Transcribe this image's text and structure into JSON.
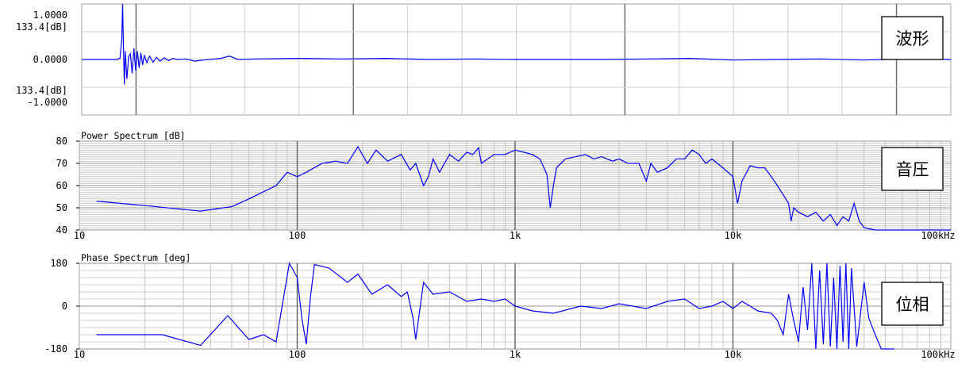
{
  "chart_data": [
    {
      "type": "line",
      "id": "waveform",
      "panel_label": "波形",
      "y_tick_labels": {
        "top": [
          "1.0000",
          "133.4[dB]"
        ],
        "mid": "0.0000",
        "bottom": [
          "133.4[dB]",
          "-1.0000"
        ]
      },
      "ylim": [
        -1,
        1
      ],
      "grid": true,
      "line_color": "#0000ff",
      "series": [
        {
          "points": [
            [
              0.0,
              0.0
            ],
            [
              0.04,
              0.0
            ],
            [
              0.044,
              0.02
            ],
            [
              0.046,
              0.35
            ],
            [
              0.047,
              1.0
            ],
            [
              0.048,
              0.2
            ],
            [
              0.049,
              -0.45
            ],
            [
              0.05,
              0.15
            ],
            [
              0.052,
              -0.35
            ],
            [
              0.054,
              0.05
            ],
            [
              0.056,
              0.1
            ],
            [
              0.058,
              -0.25
            ],
            [
              0.06,
              0.2
            ],
            [
              0.062,
              -0.2
            ],
            [
              0.064,
              0.15
            ],
            [
              0.066,
              -0.15
            ],
            [
              0.068,
              0.12
            ],
            [
              0.07,
              -0.1
            ],
            [
              0.072,
              0.08
            ],
            [
              0.075,
              -0.06
            ],
            [
              0.078,
              0.06
            ],
            [
              0.082,
              -0.05
            ],
            [
              0.086,
              0.04
            ],
            [
              0.09,
              -0.03
            ],
            [
              0.095,
              0.03
            ],
            [
              0.1,
              -0.02
            ],
            [
              0.105,
              0.02
            ],
            [
              0.11,
              0.0
            ],
            [
              0.12,
              0.01
            ],
            [
              0.13,
              -0.03
            ],
            [
              0.14,
              -0.01
            ],
            [
              0.16,
              0.02
            ],
            [
              0.17,
              0.06
            ],
            [
              0.18,
              0.0
            ],
            [
              0.2,
              0.01
            ],
            [
              0.25,
              0.02
            ],
            [
              0.3,
              0.01
            ],
            [
              0.35,
              0.02
            ],
            [
              0.4,
              0.0
            ],
            [
              0.45,
              0.01
            ],
            [
              0.5,
              0.0
            ],
            [
              0.6,
              0.0
            ],
            [
              0.65,
              0.01
            ],
            [
              0.7,
              0.02
            ],
            [
              0.75,
              -0.01
            ],
            [
              0.8,
              0.0
            ],
            [
              0.85,
              0.01
            ],
            [
              0.9,
              -0.01
            ],
            [
              0.95,
              0.01
            ],
            [
              1.0,
              0.0
            ]
          ]
        }
      ]
    },
    {
      "type": "line",
      "id": "power-spectrum",
      "title": "Power Spectrum [dB]",
      "panel_label": "音圧",
      "x_scale": "log",
      "xlim": [
        10,
        100000
      ],
      "x_tick_labels": [
        "10",
        "100",
        "1k",
        "10k",
        "100kHz"
      ],
      "ylim": [
        40,
        80
      ],
      "y_ticks": [
        40,
        50,
        60,
        70,
        80
      ],
      "grid": true,
      "line_color": "#0000ff",
      "series": [
        {
          "points": [
            [
              12,
              53
            ],
            [
              20,
              51
            ],
            [
              36,
              48.5
            ],
            [
              50,
              50.5
            ],
            [
              60,
              54
            ],
            [
              80,
              60
            ],
            [
              90,
              66
            ],
            [
              100,
              64
            ],
            [
              110,
              66
            ],
            [
              130,
              70
            ],
            [
              150,
              71
            ],
            [
              170,
              70
            ],
            [
              190,
              77.5
            ],
            [
              210,
              70
            ],
            [
              230,
              76
            ],
            [
              260,
              71
            ],
            [
              300,
              74
            ],
            [
              330,
              67
            ],
            [
              350,
              70
            ],
            [
              380,
              60
            ],
            [
              400,
              64
            ],
            [
              420,
              72
            ],
            [
              450,
              66
            ],
            [
              500,
              74
            ],
            [
              550,
              71
            ],
            [
              600,
              75
            ],
            [
              640,
              74
            ],
            [
              680,
              77
            ],
            [
              700,
              70
            ],
            [
              800,
              74
            ],
            [
              900,
              74
            ],
            [
              1000,
              76
            ],
            [
              1100,
              75
            ],
            [
              1200,
              74
            ],
            [
              1300,
              72
            ],
            [
              1400,
              65
            ],
            [
              1450,
              50
            ],
            [
              1500,
              60
            ],
            [
              1550,
              68
            ],
            [
              1700,
              72
            ],
            [
              1900,
              73
            ],
            [
              2100,
              74
            ],
            [
              2300,
              72
            ],
            [
              2500,
              73
            ],
            [
              2800,
              71
            ],
            [
              3000,
              72
            ],
            [
              3300,
              70
            ],
            [
              3700,
              70
            ],
            [
              4000,
              62
            ],
            [
              4200,
              70
            ],
            [
              4500,
              66
            ],
            [
              5000,
              68
            ],
            [
              5500,
              72
            ],
            [
              6000,
              72
            ],
            [
              6500,
              76
            ],
            [
              7000,
              74
            ],
            [
              7500,
              70
            ],
            [
              8000,
              72
            ],
            [
              9000,
              68
            ],
            [
              10000,
              64
            ],
            [
              10500,
              52
            ],
            [
              11000,
              62
            ],
            [
              12000,
              69
            ],
            [
              13000,
              68
            ],
            [
              14000,
              68
            ],
            [
              15000,
              64
            ],
            [
              16000,
              60
            ],
            [
              18000,
              52
            ],
            [
              18500,
              44
            ],
            [
              19000,
              50
            ],
            [
              20000,
              48
            ],
            [
              22000,
              46
            ],
            [
              24000,
              48
            ],
            [
              26000,
              44
            ],
            [
              28000,
              47
            ],
            [
              30000,
              42
            ],
            [
              32000,
              46
            ],
            [
              34000,
              44
            ],
            [
              36000,
              52
            ],
            [
              38000,
              44
            ],
            [
              40000,
              41
            ],
            [
              45000,
              40
            ],
            [
              50000,
              40
            ],
            [
              100000,
              40
            ]
          ]
        }
      ]
    },
    {
      "type": "line",
      "id": "phase-spectrum",
      "title": "Phase Spectrum [deg]",
      "panel_label": "位相",
      "x_scale": "log",
      "xlim": [
        10,
        100000
      ],
      "x_tick_labels": [
        "10",
        "100",
        "1k",
        "10k",
        "100kHz"
      ],
      "ylim": [
        -180,
        180
      ],
      "y_ticks": [
        -180,
        0,
        180
      ],
      "grid": true,
      "line_color": "#0000ff",
      "series": [
        {
          "points": [
            [
              12,
              -120
            ],
            [
              24,
              -120
            ],
            [
              36,
              -165
            ],
            [
              48,
              -40
            ],
            [
              60,
              -140
            ],
            [
              70,
              -120
            ],
            [
              80,
              -150
            ],
            [
              92,
              180
            ],
            [
              100,
              120
            ],
            [
              105,
              -50
            ],
            [
              110,
              -160
            ],
            [
              115,
              40
            ],
            [
              120,
              175
            ],
            [
              140,
              160
            ],
            [
              170,
              100
            ],
            [
              190,
              135
            ],
            [
              220,
              50
            ],
            [
              260,
              90
            ],
            [
              300,
              40
            ],
            [
              320,
              60
            ],
            [
              340,
              -50
            ],
            [
              350,
              -140
            ],
            [
              380,
              100
            ],
            [
              420,
              50
            ],
            [
              500,
              60
            ],
            [
              600,
              20
            ],
            [
              700,
              30
            ],
            [
              800,
              20
            ],
            [
              900,
              30
            ],
            [
              1000,
              0
            ],
            [
              1200,
              -20
            ],
            [
              1500,
              -30
            ],
            [
              2000,
              0
            ],
            [
              2500,
              -10
            ],
            [
              3000,
              10
            ],
            [
              4000,
              -10
            ],
            [
              5000,
              20
            ],
            [
              6000,
              30
            ],
            [
              7000,
              -10
            ],
            [
              8000,
              0
            ],
            [
              9000,
              20
            ],
            [
              10000,
              -10
            ],
            [
              11000,
              20
            ],
            [
              12000,
              0
            ],
            [
              13000,
              -20
            ],
            [
              15000,
              -30
            ],
            [
              16000,
              -60
            ],
            [
              17000,
              -120
            ],
            [
              18000,
              50
            ],
            [
              19000,
              -60
            ],
            [
              20000,
              -150
            ],
            [
              21000,
              80
            ],
            [
              22000,
              -100
            ],
            [
              23000,
              180
            ],
            [
              24000,
              -180
            ],
            [
              25000,
              150
            ],
            [
              26000,
              -160
            ],
            [
              27000,
              180
            ],
            [
              28000,
              -170
            ],
            [
              29000,
              120
            ],
            [
              30000,
              -180
            ],
            [
              31000,
              170
            ],
            [
              32000,
              -150
            ],
            [
              33000,
              180
            ],
            [
              34000,
              -180
            ],
            [
              35000,
              160
            ],
            [
              37000,
              -170
            ],
            [
              40000,
              100
            ],
            [
              42000,
              -50
            ],
            [
              45000,
              -120
            ],
            [
              48000,
              -180
            ],
            [
              55000,
              -180
            ]
          ]
        }
      ]
    }
  ]
}
